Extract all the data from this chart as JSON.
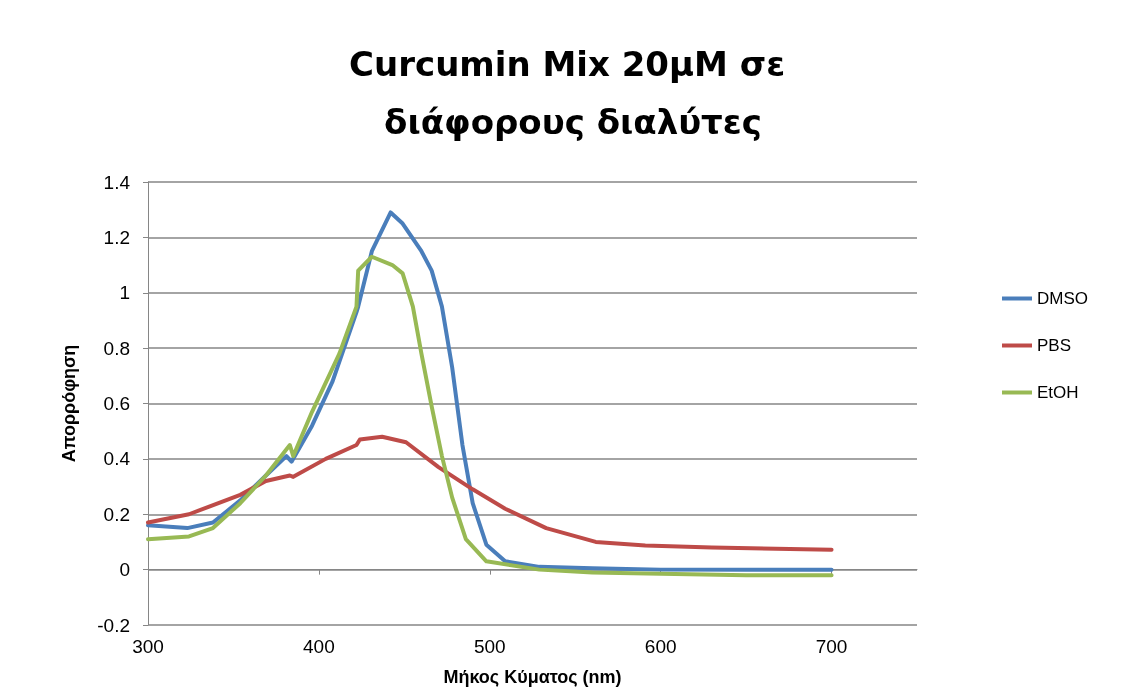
{
  "chart_data": {
    "type": "line",
    "title": "Curcumin Mix 20μM σε διάφορους διαλύτες",
    "xlabel": "Μήκος Κύματος (nm)",
    "ylabel": "Απορρόφηση",
    "xlim": [
      300,
      750
    ],
    "xticks": [
      300,
      400,
      500,
      600,
      700
    ],
    "ylim": [
      -0.2,
      1.4
    ],
    "yticks": [
      -0.2,
      0,
      0.2,
      0.4,
      0.6,
      0.8,
      1,
      1.2,
      1.4
    ],
    "grid": "y",
    "legend": "right",
    "marker": "none",
    "line_style": "solid",
    "series": [
      {
        "name": "DMSO",
        "color": "#4a7ebb",
        "x": [
          300,
          323,
          338,
          354,
          369,
          381,
          384,
          396,
          408,
          422,
          423,
          431,
          442,
          449,
          460,
          466,
          472,
          478,
          484,
          490,
          498,
          509,
          529,
          560,
          600,
          650,
          700
        ],
        "values": [
          0.16,
          0.15,
          0.17,
          0.25,
          0.34,
          0.41,
          0.39,
          0.52,
          0.68,
          0.93,
          0.95,
          1.15,
          1.29,
          1.25,
          1.15,
          1.08,
          0.95,
          0.73,
          0.45,
          0.24,
          0.09,
          0.03,
          0.01,
          0.005,
          0,
          0,
          0
        ]
      },
      {
        "name": "PBS",
        "color": "#be4b48",
        "x": [
          300,
          324,
          354,
          369,
          383,
          385,
          404,
          422,
          424,
          437,
          451,
          470,
          490,
          509,
          533,
          562,
          591,
          630,
          700
        ],
        "values": [
          0.17,
          0.2,
          0.27,
          0.32,
          0.34,
          0.335,
          0.4,
          0.45,
          0.47,
          0.48,
          0.46,
          0.37,
          0.29,
          0.22,
          0.15,
          0.1,
          0.087,
          0.08,
          0.072
        ]
      },
      {
        "name": "EtOH",
        "color": "#98b954",
        "x": [
          300,
          324,
          338,
          354,
          369,
          383,
          385,
          396,
          412,
          422,
          423,
          431,
          443,
          449,
          455,
          460,
          466,
          472,
          478,
          486,
          498,
          529,
          560,
          600,
          650,
          700
        ],
        "values": [
          0.11,
          0.12,
          0.15,
          0.24,
          0.34,
          0.45,
          0.41,
          0.57,
          0.78,
          0.95,
          1.08,
          1.13,
          1.1,
          1.07,
          0.95,
          0.78,
          0.59,
          0.41,
          0.26,
          0.11,
          0.03,
          0,
          -0.01,
          -0.015,
          -0.02,
          -0.02
        ]
      }
    ]
  }
}
